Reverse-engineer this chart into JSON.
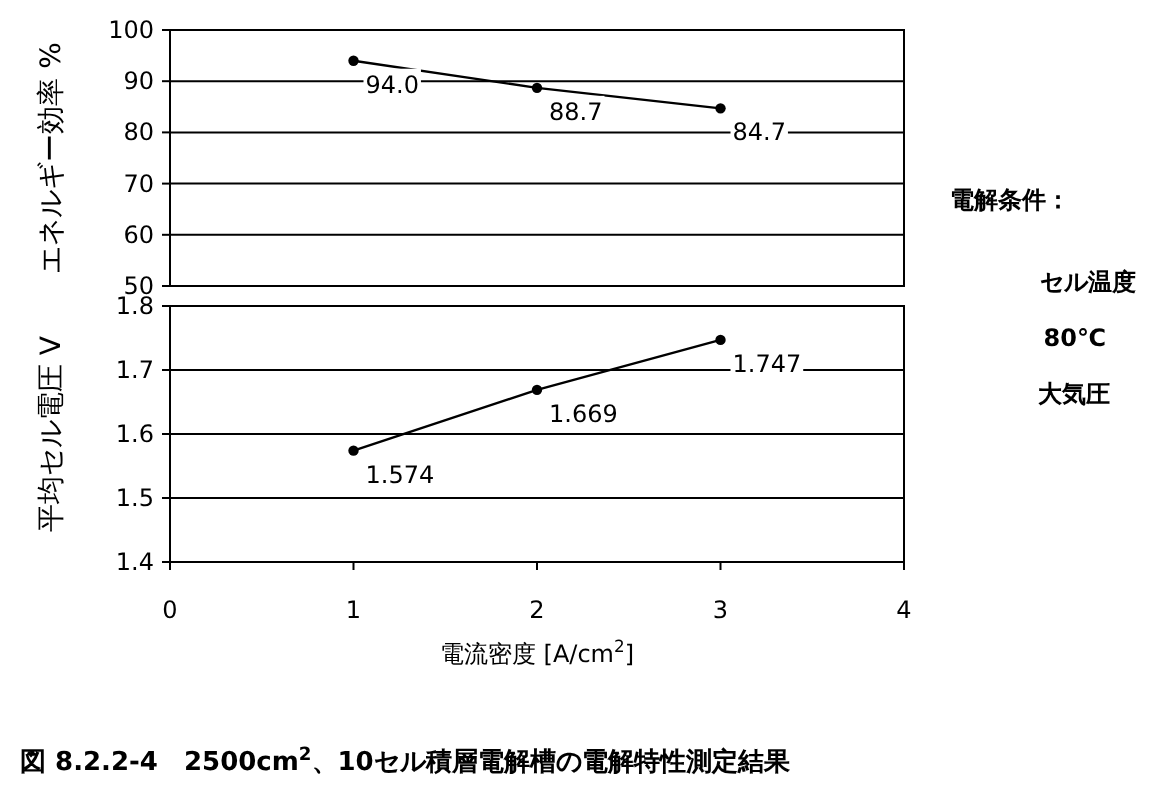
{
  "chart_data": [
    {
      "type": "line",
      "ylabel": "エネルギー効率 %",
      "x": [
        1,
        2,
        3
      ],
      "values": [
        94.0,
        88.7,
        84.7
      ],
      "value_labels": [
        "94.0",
        "88.7",
        "84.7"
      ],
      "color": "#000000",
      "marker": "circle",
      "line_style": "solid",
      "xlim": [
        0,
        4
      ],
      "ylim": [
        50,
        100
      ],
      "yticks": [
        50,
        60,
        70,
        80,
        90,
        100
      ],
      "grid": "y",
      "tick_labels": "y"
    },
    {
      "type": "line",
      "ylabel": "平均セル電圧 V",
      "xlabel": "電流密度 [A/cm$^{2}$]",
      "x": [
        1,
        2,
        3
      ],
      "values": [
        1.574,
        1.669,
        1.747
      ],
      "data_labels": true,
      "color": "#000000",
      "marker": "circle",
      "line_style": "solid",
      "xlim": [
        0,
        4
      ],
      "xticks": [
        0,
        1,
        2,
        3,
        4
      ],
      "ylim": [
        1.4,
        1.8
      ],
      "yticks": [
        {
          "value": 1.4,
          "label": "1.4"
        },
        {
          "value": 1.5,
          "label": "1.5"
        },
        {
          "value": 1.6,
          "label": "1.6"
        },
        {
          "value": 1.7,
          "label": "1.7"
        },
        {
          "value": 1.8,
          "label": "1.8"
        }
      ],
      "grid": "y",
      "annotations": [
        "図 8.2.2-4　2500cm$^{2}$、10セル積層電解槽の電解特性測定結果"
      ]
    },
    {
      "type": "other",
      "annotations": [
        "電解条件：",
        "セル温度",
        "80℃",
        "大気圧"
      ]
    }
  ]
}
